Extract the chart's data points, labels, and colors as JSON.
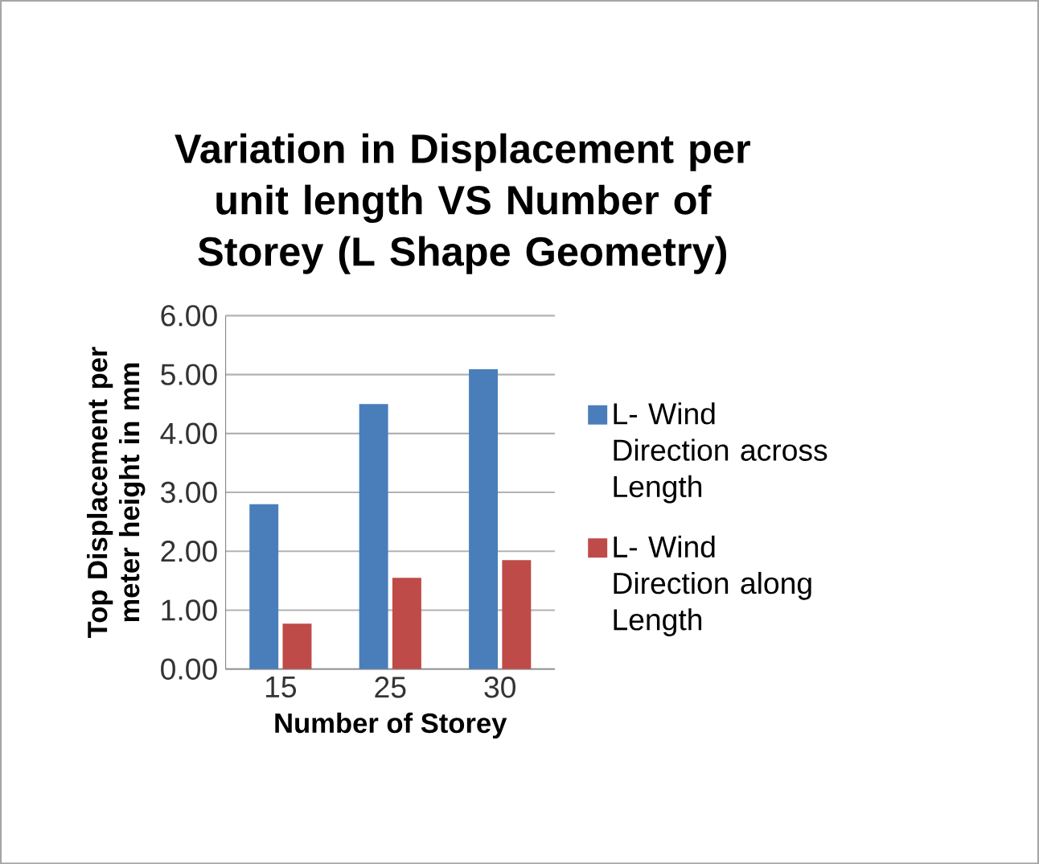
{
  "chart_data": {
    "type": "bar",
    "title": "Variation in Displacement per unit length VS Number of Storey (L Shape Geometry)",
    "xlabel": "Number of Storey",
    "ylabel": "Top Displacement per meter height in mm",
    "categories": [
      "15",
      "25",
      "30"
    ],
    "series": [
      {
        "name": "L- Wind Direction across Length",
        "color": "#4a7ebb",
        "values": [
          2.8,
          4.5,
          5.09
        ]
      },
      {
        "name": "L- Wind Direction along Length",
        "color": "#be4b48",
        "values": [
          0.77,
          1.55,
          1.85
        ]
      }
    ],
    "ylim": [
      0,
      6
    ],
    "yticks": [
      {
        "value": 0,
        "label": "0.00"
      },
      {
        "value": 1,
        "label": "1.00"
      },
      {
        "value": 2,
        "label": "2.00"
      },
      {
        "value": 3,
        "label": "3.00"
      },
      {
        "value": 4,
        "label": "4.00"
      },
      {
        "value": 5,
        "label": "5.00"
      },
      {
        "value": 6,
        "label": "6.00"
      }
    ],
    "grid": "y",
    "legend": "right"
  }
}
